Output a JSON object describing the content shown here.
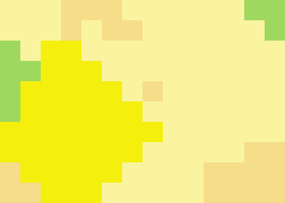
{
  "chart_data": {
    "type": "heatmap",
    "cells": [
      [
        2,
        2,
        2,
        3,
        3,
        3,
        2,
        2,
        2,
        2,
        2,
        2,
        0,
        0
      ],
      [
        2,
        2,
        2,
        3,
        2,
        3,
        3,
        2,
        2,
        2,
        2,
        2,
        2,
        0
      ],
      [
        0,
        2,
        1,
        1,
        2,
        2,
        2,
        2,
        2,
        2,
        2,
        2,
        2,
        2
      ],
      [
        0,
        0,
        1,
        1,
        1,
        2,
        2,
        2,
        2,
        2,
        2,
        2,
        2,
        2
      ],
      [
        0,
        1,
        1,
        1,
        1,
        1,
        2,
        3,
        2,
        2,
        2,
        2,
        2,
        2
      ],
      [
        0,
        1,
        1,
        1,
        1,
        1,
        1,
        2,
        2,
        2,
        2,
        2,
        2,
        2
      ],
      [
        1,
        1,
        1,
        1,
        1,
        1,
        1,
        1,
        2,
        2,
        2,
        2,
        2,
        2
      ],
      [
        1,
        1,
        1,
        1,
        1,
        1,
        1,
        2,
        2,
        2,
        2,
        2,
        3,
        3
      ],
      [
        3,
        1,
        1,
        1,
        1,
        1,
        2,
        2,
        2,
        2,
        3,
        3,
        3,
        3
      ],
      [
        3,
        3,
        1,
        1,
        1,
        2,
        2,
        2,
        2,
        2,
        3,
        3,
        3,
        3
      ]
    ],
    "colors": [
      "#9fd85e",
      "#f4ef0c",
      "#faf4a0",
      "#f6dd8a"
    ],
    "xlim": [
      -0.5,
      13.5
    ],
    "ylim": [
      9.5,
      -0.5
    ],
    "tick_labels": false,
    "grid": false
  }
}
